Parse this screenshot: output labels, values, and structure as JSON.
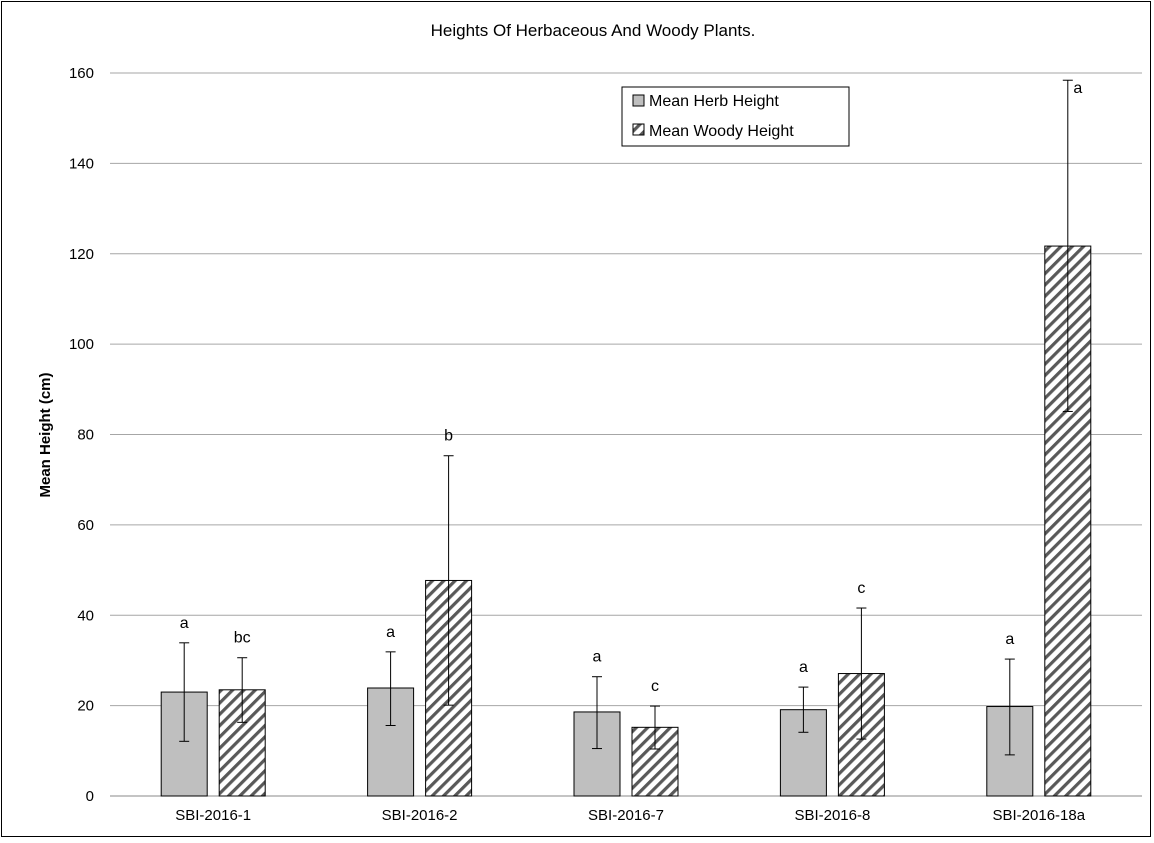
{
  "chart_data": {
    "type": "bar",
    "title": "Heights Of Herbaceous And Woody Plants.",
    "xlabel": "",
    "ylabel": "Mean Height (cm)",
    "ylim": [
      0,
      160
    ],
    "yticks": [
      "0",
      "20",
      "40",
      "60",
      "80",
      "100",
      "120",
      "140",
      "160"
    ],
    "grid": "horizontal",
    "legend_position": "top-center",
    "categories": [
      "SBI-2016-1",
      "SBI-2016-2",
      "SBI-2016-7",
      "SBI-2016-8",
      "SBI-2016-18a"
    ],
    "series": [
      {
        "name": "Mean Herb Height",
        "pattern": "solid",
        "color": "#bfbfbf",
        "values": [
          23,
          23.9,
          18.6,
          19.1,
          19.8
        ],
        "error_low": [
          12.1,
          15.6,
          10.5,
          14.1,
          9.1
        ],
        "error_high": [
          33.9,
          31.9,
          26.4,
          24.1,
          30.3
        ],
        "sig_letters": [
          "a",
          "a",
          "a",
          "a",
          "a"
        ]
      },
      {
        "name": "Mean Woody Height",
        "pattern": "diagonal-hatch",
        "color": "#595959",
        "values": [
          23.5,
          47.7,
          15.2,
          27.1,
          121.7
        ],
        "error_low": [
          16.3,
          20.1,
          10.4,
          12.6,
          85.1
        ],
        "error_high": [
          30.6,
          75.3,
          19.9,
          41.6,
          158.4
        ],
        "sig_letters": [
          "bc",
          "b",
          "c",
          "c",
          "a"
        ]
      }
    ]
  }
}
